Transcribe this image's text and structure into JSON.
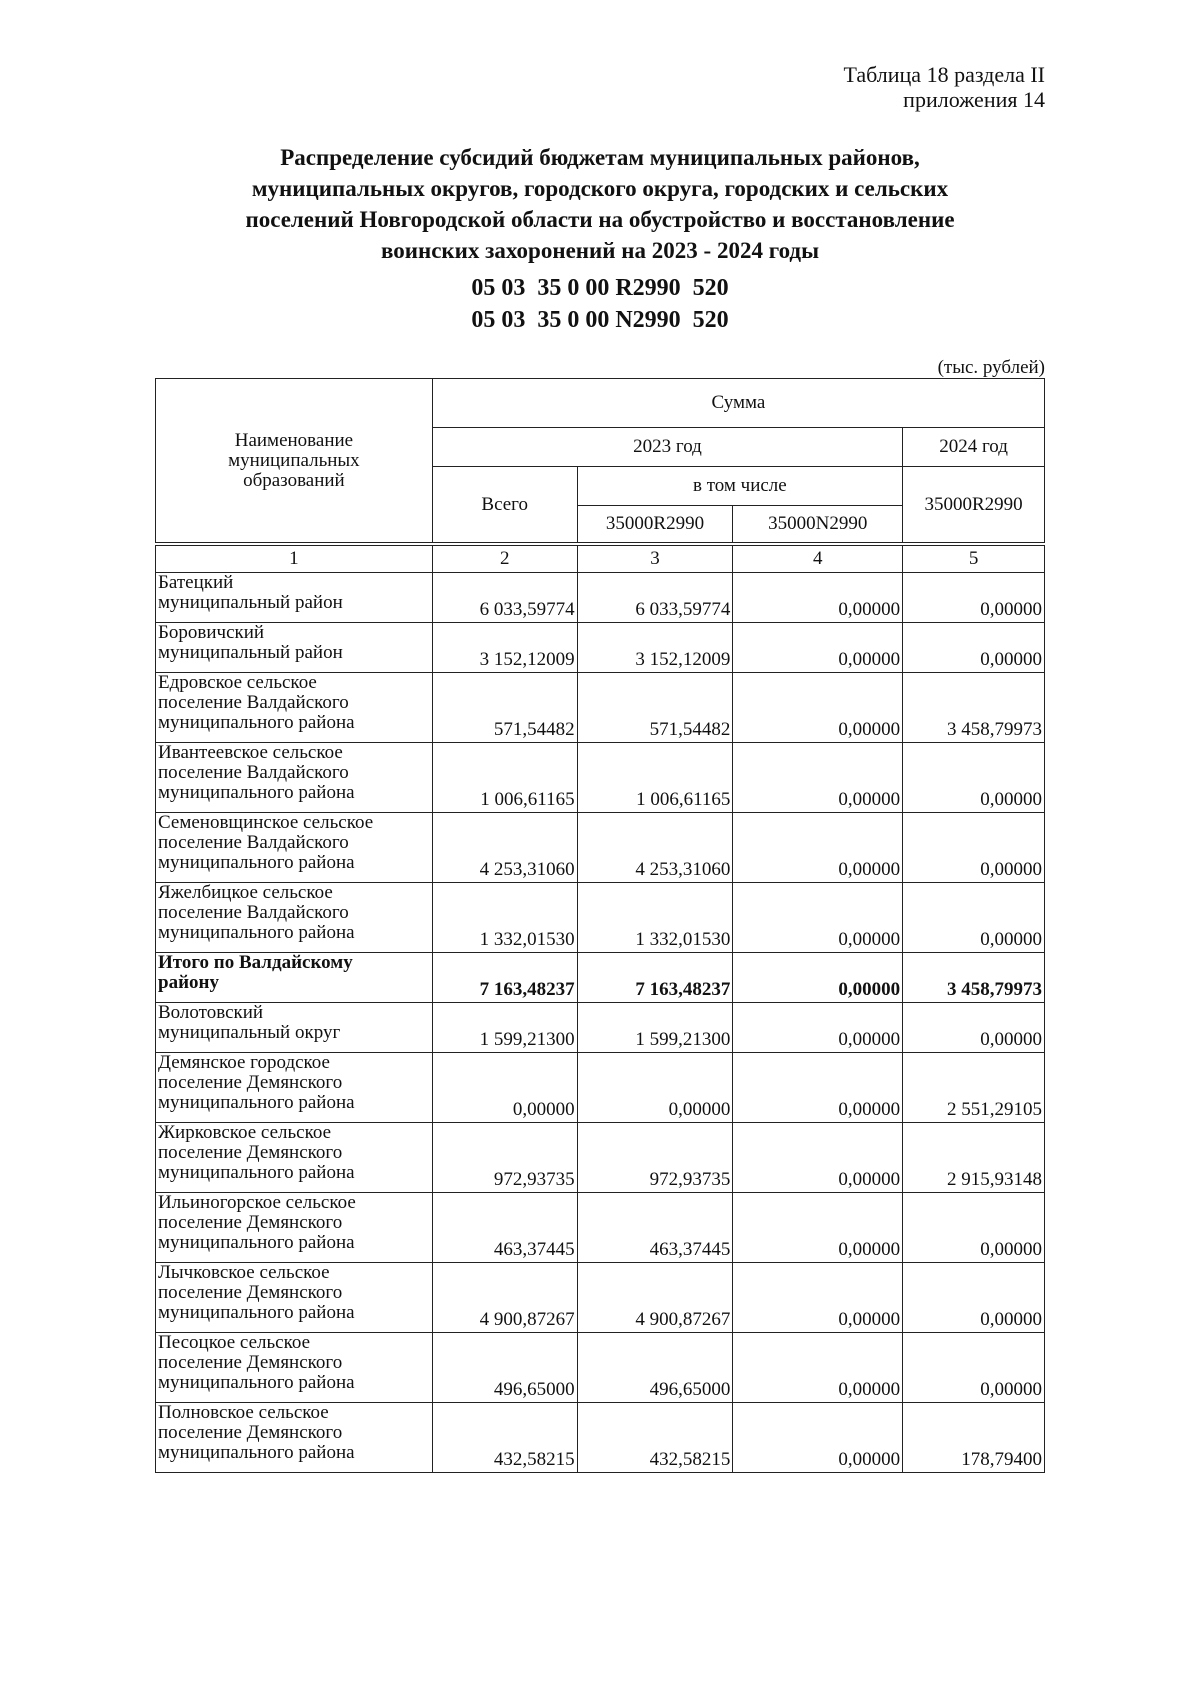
{
  "reference": [
    "Таблица 18 раздела II",
    "приложения 14"
  ],
  "title": [
    "Распределение субсидий бюджетам муниципальных районов,",
    "муниципальных округов, городского округа, городских и сельских",
    "поселений Новгородской области на обустройство и восстановление",
    "воинских захоронений на 2023 - 2024 годы"
  ],
  "codes": [
    "05 03  35 0 00 R2990  520",
    "05 03  35 0 00 N2990  520"
  ],
  "units": "(тыс. рублей)",
  "header": {
    "name": "Наименование муниципальных образований",
    "sum": "Сумма",
    "y2023": "2023 год",
    "y2024": "2024 год",
    "total": "Всего",
    "including": "в том числе",
    "c3": "35000R2990",
    "c4": "35000N2990",
    "c5": "35000R2990",
    "numbers": [
      "1",
      "2",
      "3",
      "4",
      "5"
    ]
  },
  "rows": [
    {
      "name": [
        "Батецкий",
        "муниципальный район"
      ],
      "v": [
        "6 033,59774",
        "6 033,59774",
        "0,00000",
        "0,00000"
      ]
    },
    {
      "name": [
        "Боровичский",
        "муниципальный район"
      ],
      "v": [
        "3 152,12009",
        "3 152,12009",
        "0,00000",
        "0,00000"
      ]
    },
    {
      "name": [
        "Едровское сельское",
        "поселение Валдайского",
        "муниципального района"
      ],
      "v": [
        "571,54482",
        "571,54482",
        "0,00000",
        "3 458,79973"
      ]
    },
    {
      "name": [
        "Ивантеевское сельское",
        "поселение Валдайского",
        "муниципального района"
      ],
      "v": [
        "1 006,61165",
        "1 006,61165",
        "0,00000",
        "0,00000"
      ]
    },
    {
      "name": [
        "Семеновщинское сельское",
        "поселение Валдайского",
        "муниципального района"
      ],
      "v": [
        "4 253,31060",
        "4 253,31060",
        "0,00000",
        "0,00000"
      ]
    },
    {
      "name": [
        "Яжелбицкое сельское",
        "поселение Валдайского",
        "муниципального района"
      ],
      "v": [
        "1 332,01530",
        "1 332,01530",
        "0,00000",
        "0,00000"
      ]
    },
    {
      "name": [
        "Итого по Валдайскому",
        "району"
      ],
      "v": [
        "7 163,48237",
        "7 163,48237",
        "0,00000",
        "3 458,79973"
      ],
      "bold": true
    },
    {
      "name": [
        "Волотовский",
        "муниципальный округ"
      ],
      "v": [
        "1 599,21300",
        "1 599,21300",
        "0,00000",
        "0,00000"
      ]
    },
    {
      "name": [
        "Демянское городское",
        "поселение Демянского",
        "муниципального района"
      ],
      "v": [
        "0,00000",
        "0,00000",
        "0,00000",
        "2 551,29105"
      ]
    },
    {
      "name": [
        "Жирковское сельское",
        "поселение Демянского",
        "муниципального района"
      ],
      "v": [
        "972,93735",
        "972,93735",
        "0,00000",
        "2 915,93148"
      ]
    },
    {
      "name": [
        "Ильиногорское сельское",
        "поселение Демянского",
        "муниципального района"
      ],
      "v": [
        "463,37445",
        "463,37445",
        "0,00000",
        "0,00000"
      ]
    },
    {
      "name": [
        "Лычковское сельское",
        "поселение Демянского",
        "муниципального района"
      ],
      "v": [
        "4 900,87267",
        "4 900,87267",
        "0,00000",
        "0,00000"
      ]
    },
    {
      "name": [
        "Песоцкое сельское",
        "поселение Демянского",
        "муниципального района"
      ],
      "v": [
        "496,65000",
        "496,65000",
        "0,00000",
        "0,00000"
      ]
    },
    {
      "name": [
        "Полновское сельское",
        "поселение Демянского",
        "муниципального района"
      ],
      "v": [
        "432,58215",
        "432,58215",
        "0,00000",
        "178,79400"
      ]
    }
  ]
}
